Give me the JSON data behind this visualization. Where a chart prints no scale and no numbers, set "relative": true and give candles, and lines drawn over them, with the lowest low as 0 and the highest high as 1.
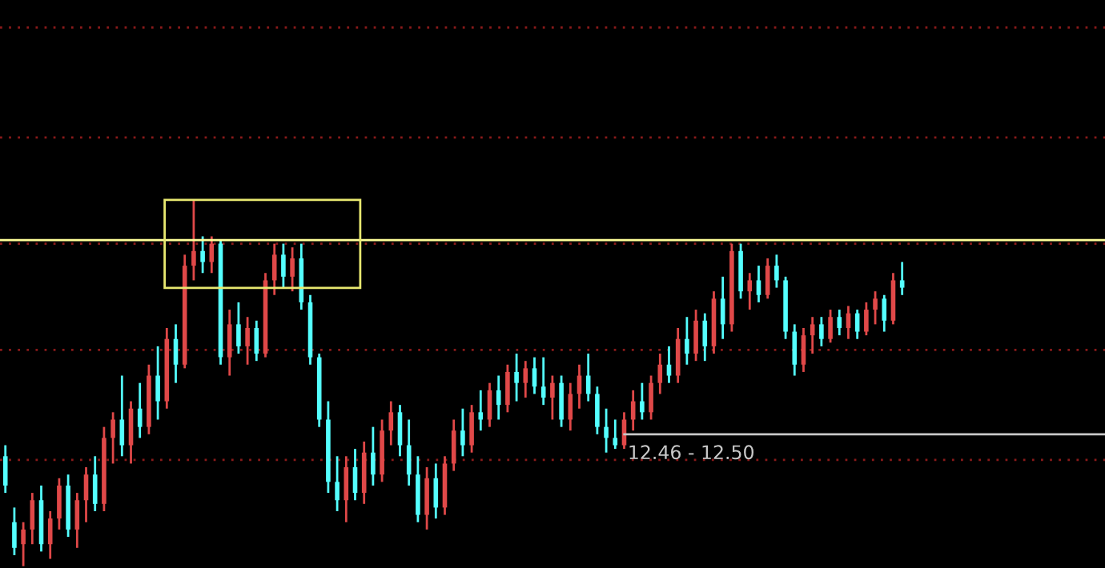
{
  "chart_data": {
    "type": "candlestick",
    "relative": true,
    "categories": [
      null,
      null,
      null,
      null,
      null,
      null,
      null,
      null,
      null,
      null,
      null,
      null,
      null,
      null,
      null,
      null,
      null,
      null,
      null,
      null,
      null,
      null,
      null,
      null,
      null,
      null,
      null,
      null,
      null,
      null,
      null,
      null,
      null,
      null,
      null,
      null,
      null,
      null,
      null,
      null,
      null,
      null,
      null,
      null,
      null,
      null,
      null,
      null,
      null,
      null,
      null,
      null,
      null,
      null,
      null,
      null,
      null,
      null,
      null,
      null,
      null,
      null,
      null,
      null,
      null,
      null,
      null,
      null,
      null,
      null,
      null,
      null,
      null,
      null,
      null,
      null,
      null,
      null,
      null,
      null,
      null,
      null,
      null,
      null,
      null,
      null,
      null,
      null,
      null,
      null,
      null,
      null,
      null,
      null,
      null,
      null,
      null,
      null,
      null,
      null,
      null
    ],
    "ohlc": [
      [
        0.3,
        0.33,
        0.2,
        0.22
      ],
      [
        0.12,
        0.16,
        0.03,
        0.05
      ],
      [
        0.06,
        0.12,
        0.0,
        0.1
      ],
      [
        0.1,
        0.2,
        0.06,
        0.18
      ],
      [
        0.18,
        0.22,
        0.04,
        0.06
      ],
      [
        0.06,
        0.15,
        0.02,
        0.13
      ],
      [
        0.13,
        0.24,
        0.1,
        0.22
      ],
      [
        0.22,
        0.25,
        0.08,
        0.1
      ],
      [
        0.1,
        0.2,
        0.05,
        0.18
      ],
      [
        0.18,
        0.27,
        0.12,
        0.25
      ],
      [
        0.25,
        0.3,
        0.15,
        0.17
      ],
      [
        0.17,
        0.38,
        0.15,
        0.35
      ],
      [
        0.35,
        0.42,
        0.28,
        0.4
      ],
      [
        0.4,
        0.52,
        0.3,
        0.33
      ],
      [
        0.33,
        0.45,
        0.28,
        0.43
      ],
      [
        0.43,
        0.5,
        0.35,
        0.38
      ],
      [
        0.38,
        0.55,
        0.36,
        0.52
      ],
      [
        0.52,
        0.6,
        0.4,
        0.45
      ],
      [
        0.45,
        0.65,
        0.43,
        0.62
      ],
      [
        0.62,
        0.66,
        0.5,
        0.55
      ],
      [
        0.55,
        0.85,
        0.54,
        0.82
      ],
      [
        0.82,
        1.0,
        0.78,
        0.86
      ],
      [
        0.86,
        0.9,
        0.8,
        0.83
      ],
      [
        0.83,
        0.9,
        0.8,
        0.88
      ],
      [
        0.88,
        0.89,
        0.55,
        0.57
      ],
      [
        0.57,
        0.7,
        0.52,
        0.66
      ],
      [
        0.66,
        0.72,
        0.58,
        0.6
      ],
      [
        0.6,
        0.68,
        0.55,
        0.65
      ],
      [
        0.65,
        0.67,
        0.56,
        0.58
      ],
      [
        0.58,
        0.8,
        0.57,
        0.78
      ],
      [
        0.78,
        0.88,
        0.74,
        0.85
      ],
      [
        0.85,
        0.88,
        0.76,
        0.79
      ],
      [
        0.79,
        0.87,
        0.75,
        0.84
      ],
      [
        0.84,
        0.88,
        0.7,
        0.72
      ],
      [
        0.72,
        0.74,
        0.55,
        0.57
      ],
      [
        0.57,
        0.58,
        0.38,
        0.4
      ],
      [
        0.4,
        0.45,
        0.2,
        0.23
      ],
      [
        0.23,
        0.3,
        0.15,
        0.18
      ],
      [
        0.18,
        0.3,
        0.12,
        0.27
      ],
      [
        0.27,
        0.32,
        0.18,
        0.2
      ],
      [
        0.2,
        0.34,
        0.17,
        0.31
      ],
      [
        0.31,
        0.38,
        0.22,
        0.25
      ],
      [
        0.25,
        0.4,
        0.23,
        0.37
      ],
      [
        0.37,
        0.45,
        0.33,
        0.42
      ],
      [
        0.42,
        0.44,
        0.3,
        0.33
      ],
      [
        0.33,
        0.4,
        0.22,
        0.25
      ],
      [
        0.25,
        0.3,
        0.12,
        0.14
      ],
      [
        0.14,
        0.27,
        0.1,
        0.24
      ],
      [
        0.24,
        0.28,
        0.13,
        0.16
      ],
      [
        0.16,
        0.3,
        0.14,
        0.28
      ],
      [
        0.28,
        0.4,
        0.26,
        0.37
      ],
      [
        0.37,
        0.43,
        0.3,
        0.33
      ],
      [
        0.33,
        0.44,
        0.31,
        0.42
      ],
      [
        0.42,
        0.48,
        0.37,
        0.4
      ],
      [
        0.4,
        0.5,
        0.38,
        0.48
      ],
      [
        0.48,
        0.52,
        0.4,
        0.44
      ],
      [
        0.44,
        0.55,
        0.42,
        0.53
      ],
      [
        0.53,
        0.58,
        0.45,
        0.5
      ],
      [
        0.5,
        0.56,
        0.46,
        0.54
      ],
      [
        0.54,
        0.57,
        0.47,
        0.49
      ],
      [
        0.49,
        0.57,
        0.44,
        0.46
      ],
      [
        0.46,
        0.52,
        0.4,
        0.5
      ],
      [
        0.5,
        0.52,
        0.38,
        0.4
      ],
      [
        0.4,
        0.5,
        0.37,
        0.47
      ],
      [
        0.47,
        0.55,
        0.43,
        0.52
      ],
      [
        0.52,
        0.58,
        0.45,
        0.47
      ],
      [
        0.47,
        0.49,
        0.36,
        0.38
      ],
      [
        0.38,
        0.43,
        0.31,
        0.35
      ],
      [
        0.35,
        0.4,
        0.32,
        0.33
      ],
      [
        0.33,
        0.42,
        0.32,
        0.4
      ],
      [
        0.4,
        0.48,
        0.37,
        0.45
      ],
      [
        0.45,
        0.5,
        0.4,
        0.42
      ],
      [
        0.42,
        0.52,
        0.4,
        0.5
      ],
      [
        0.5,
        0.58,
        0.47,
        0.55
      ],
      [
        0.55,
        0.6,
        0.5,
        0.52
      ],
      [
        0.52,
        0.65,
        0.5,
        0.62
      ],
      [
        0.62,
        0.68,
        0.55,
        0.58
      ],
      [
        0.58,
        0.7,
        0.56,
        0.67
      ],
      [
        0.67,
        0.69,
        0.56,
        0.6
      ],
      [
        0.6,
        0.75,
        0.58,
        0.73
      ],
      [
        0.73,
        0.79,
        0.62,
        0.66
      ],
      [
        0.66,
        0.88,
        0.64,
        0.86
      ],
      [
        0.86,
        0.88,
        0.73,
        0.75
      ],
      [
        0.75,
        0.8,
        0.7,
        0.78
      ],
      [
        0.78,
        0.82,
        0.72,
        0.74
      ],
      [
        0.74,
        0.84,
        0.73,
        0.82
      ],
      [
        0.82,
        0.85,
        0.76,
        0.78
      ],
      [
        0.78,
        0.79,
        0.62,
        0.64
      ],
      [
        0.64,
        0.66,
        0.52,
        0.55
      ],
      [
        0.55,
        0.65,
        0.53,
        0.63
      ],
      [
        0.63,
        0.68,
        0.58,
        0.66
      ],
      [
        0.66,
        0.68,
        0.6,
        0.62
      ],
      [
        0.62,
        0.7,
        0.61,
        0.68
      ],
      [
        0.68,
        0.7,
        0.63,
        0.65
      ],
      [
        0.65,
        0.71,
        0.62,
        0.69
      ],
      [
        0.69,
        0.7,
        0.62,
        0.64
      ],
      [
        0.64,
        0.72,
        0.63,
        0.7
      ],
      [
        0.7,
        0.75,
        0.66,
        0.73
      ],
      [
        0.73,
        0.74,
        0.64,
        0.67
      ],
      [
        0.67,
        0.8,
        0.66,
        0.78
      ],
      [
        0.78,
        0.83,
        0.74,
        0.76
      ]
    ],
    "colors": [
      "#54ffff",
      "#54ffff",
      "#e04848",
      "#e04848",
      "#54ffff",
      "#e04848",
      "#e04848",
      "#54ffff",
      "#e04848",
      "#e04848",
      "#54ffff",
      "#e04848",
      "#e04848",
      "#54ffff",
      "#e04848",
      "#54ffff",
      "#e04848",
      "#54ffff",
      "#e04848",
      "#54ffff",
      "#e04848",
      "#e04848",
      "#54ffff",
      "#e04848",
      "#54ffff",
      "#e04848",
      "#54ffff",
      "#e04848",
      "#54ffff",
      "#e04848",
      "#e04848",
      "#54ffff",
      "#e04848",
      "#54ffff",
      "#54ffff",
      "#54ffff",
      "#54ffff",
      "#54ffff",
      "#e04848",
      "#54ffff",
      "#e04848",
      "#54ffff",
      "#e04848",
      "#e04848",
      "#54ffff",
      "#54ffff",
      "#54ffff",
      "#e04848",
      "#54ffff",
      "#e04848",
      "#e04848",
      "#54ffff",
      "#e04848",
      "#54ffff",
      "#e04848",
      "#54ffff",
      "#e04848",
      "#54ffff",
      "#e04848",
      "#54ffff",
      "#54ffff",
      "#e04848",
      "#54ffff",
      "#e04848",
      "#e04848",
      "#54ffff",
      "#54ffff",
      "#54ffff",
      "#54ffff",
      "#e04848",
      "#e04848",
      "#54ffff",
      "#e04848",
      "#e04848",
      "#54ffff",
      "#e04848",
      "#54ffff",
      "#e04848",
      "#54ffff",
      "#e04848",
      "#54ffff",
      "#e04848",
      "#54ffff",
      "#e04848",
      "#54ffff",
      "#e04848",
      "#54ffff",
      "#54ffff",
      "#54ffff",
      "#e04848",
      "#e04848",
      "#54ffff",
      "#e04848",
      "#54ffff",
      "#e04848",
      "#54ffff",
      "#e04848",
      "#e04848",
      "#54ffff",
      "#e04848",
      "#54ffff"
    ],
    "ref_lines": [
      {
        "axis": "y",
        "value": 1.47,
        "color": "#8a1a1a",
        "line_style": "dotted"
      },
      {
        "axis": "y",
        "value": 1.17,
        "color": "#8a1a1a",
        "line_style": "dotted"
      },
      {
        "axis": "y",
        "value": 0.88,
        "color": "#8a1a1a",
        "line_style": "dotted"
      },
      {
        "axis": "y",
        "value": 0.59,
        "color": "#8a1a1a",
        "line_style": "dotted"
      },
      {
        "axis": "y",
        "value": 0.29,
        "color": "#8a1a1a",
        "line_style": "dotted"
      },
      {
        "axis": "y",
        "value": 0.89,
        "color": "#ffff99"
      },
      {
        "axis": "y",
        "value": 0.36,
        "color": "#c8c8c8"
      }
    ],
    "annotations": [
      "12.46 - 12.50"
    ]
  }
}
